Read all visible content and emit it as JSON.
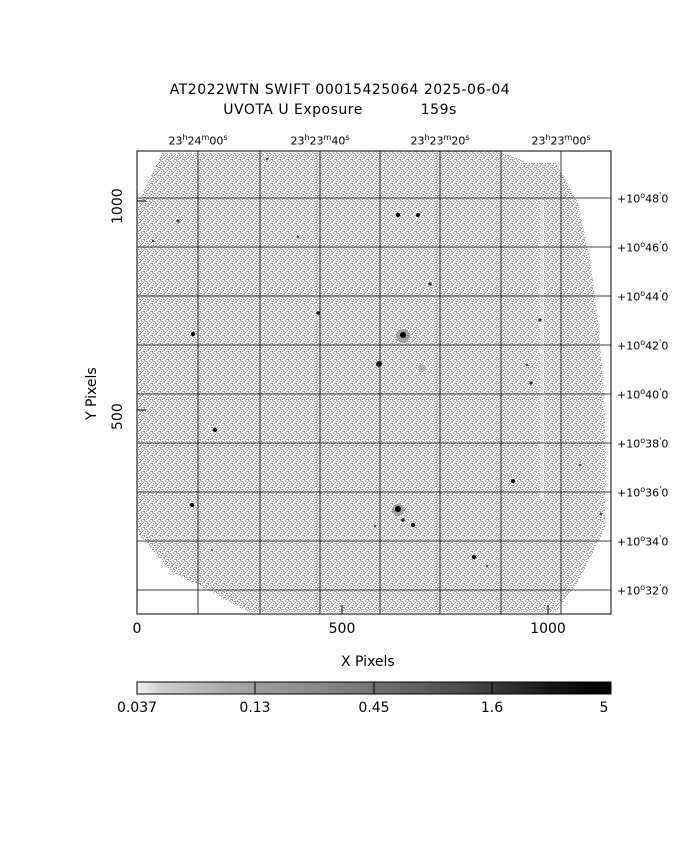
{
  "title": {
    "line1": "AT2022WTN SWIFT 00015425064 2025-06-04",
    "line2_left": "UVOTA U Exposure",
    "line2_right": "159s"
  },
  "axes": {
    "xlabel": "X Pixels",
    "ylabel": "Y Pixels",
    "x_ticks": [
      "0",
      "500",
      "1000"
    ],
    "y_ticks": [
      "500",
      "1000"
    ]
  },
  "ra_labels": [
    {
      "h": "23",
      "m": "24",
      "s": "00"
    },
    {
      "h": "23",
      "m": "23",
      "s": "40"
    },
    {
      "h": "23",
      "m": "23",
      "s": "20"
    },
    {
      "h": "23",
      "m": "23",
      "s": "00"
    }
  ],
  "dec_labels": [
    {
      "deg": "+10",
      "min": "48"
    },
    {
      "deg": "+10",
      "min": "46"
    },
    {
      "deg": "+10",
      "min": "44"
    },
    {
      "deg": "+10",
      "min": "42"
    },
    {
      "deg": "+10",
      "min": "40"
    },
    {
      "deg": "+10",
      "min": "38"
    },
    {
      "deg": "+10",
      "min": "36"
    },
    {
      "deg": "+10",
      "min": "34"
    },
    {
      "deg": "+10",
      "min": "32"
    }
  ],
  "colorbar": {
    "ticks": [
      "0.037",
      "0.13",
      "0.45",
      "1.6",
      "5"
    ]
  },
  "colors": {
    "background": "#ffffff",
    "image_gray": "#9a9a9a",
    "grid": "#000000"
  }
}
